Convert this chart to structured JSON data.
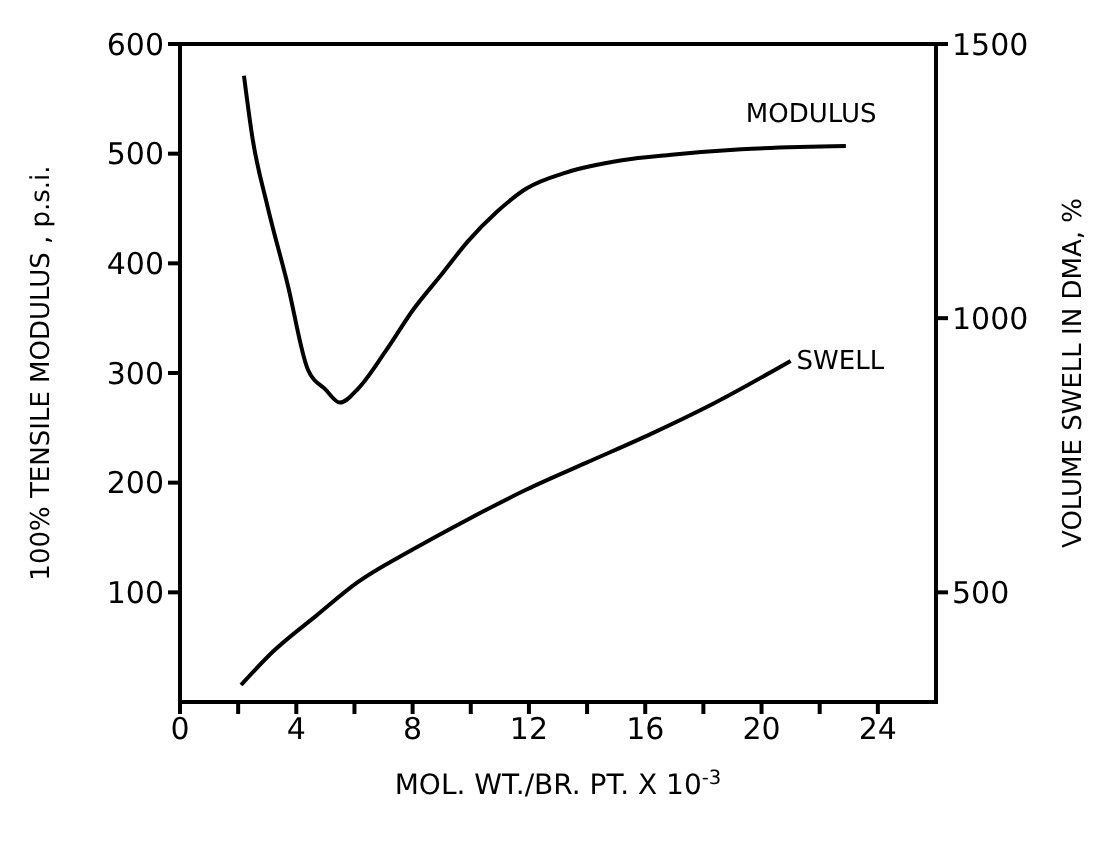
{
  "chart_data": {
    "type": "line",
    "xlabel": "MOL. WT./BR. PT. X 10$^{-3}$",
    "ylabel": "100% TENSILE MODULUS , p.s.i.",
    "y2label": "VOLUME  SWELL IN DMA, %",
    "xlim": [
      0,
      26
    ],
    "xticks": [
      0,
      {
        "value": 2,
        "label": null
      },
      4,
      {
        "value": 6,
        "label": null
      },
      8,
      {
        "value": 10,
        "label": null
      },
      12,
      {
        "value": 14,
        "label": null
      },
      16,
      {
        "value": 18,
        "label": null
      },
      20,
      {
        "value": 22,
        "label": null
      },
      24
    ],
    "ylim": [
      0,
      600
    ],
    "yticks": [
      100,
      200,
      300,
      400,
      500,
      600
    ],
    "y2lim": [
      300,
      1500
    ],
    "y2ticks": [
      500,
      1000,
      1500
    ],
    "marker": "none",
    "line_style": "solid",
    "series": [
      {
        "name": "MODULUS",
        "color": "#000000",
        "x": [
          2.2,
          2.5,
          3.0,
          3.7,
          4.4,
          5.0,
          5.5,
          6.1,
          7.1,
          8.0,
          9.0,
          9.9,
          10.9,
          11.9,
          13.3,
          15.2,
          16.9,
          19.3,
          22.9
        ],
        "values": [
          571,
          513,
          453,
          381,
          303,
          285,
          273,
          285,
          321,
          357,
          390,
          420,
          447,
          468,
          483,
          494,
          499,
          504,
          507
        ]
      },
      {
        "name": "SWELL",
        "color": "#000000",
        "axis": "y2",
        "x": [
          2.1,
          3.2,
          4.7,
          6.1,
          8.0,
          9.9,
          11.9,
          14.0,
          16.2,
          18.3,
          21.0
        ],
        "values": [
          331,
          392,
          458,
          518,
          578,
          633,
          687,
          737,
          789,
          843,
          922
        ]
      }
    ]
  }
}
